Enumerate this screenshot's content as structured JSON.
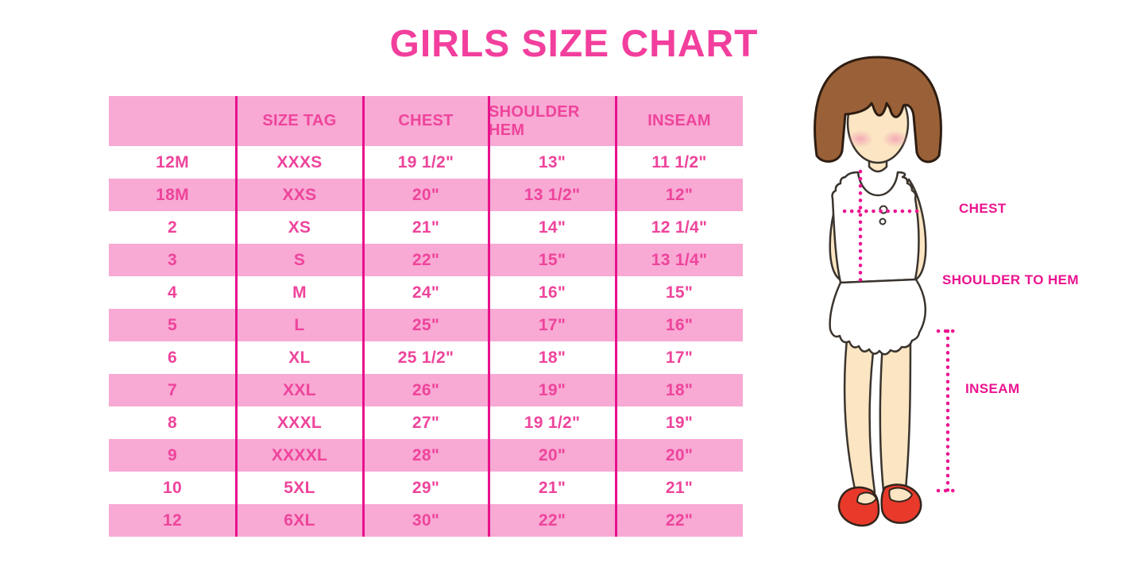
{
  "chart_data": {
    "type": "table",
    "title": "GIRLS SIZE CHART",
    "columns": [
      "",
      "SIZE TAG",
      "CHEST",
      "SHOULDER HEM",
      "INSEAM"
    ],
    "rows": [
      [
        "12M",
        "XXXS",
        "19 1/2\"",
        "13\"",
        "11 1/2\""
      ],
      [
        "18M",
        "XXS",
        "20\"",
        "13 1/2\"",
        "12\""
      ],
      [
        "2",
        "XS",
        "21\"",
        "14\"",
        "12 1/4\""
      ],
      [
        "3",
        "S",
        "22\"",
        "15\"",
        "13 1/4\""
      ],
      [
        "4",
        "M",
        "24\"",
        "16\"",
        "15\""
      ],
      [
        "5",
        "L",
        "25\"",
        "17\"",
        "16\""
      ],
      [
        "6",
        "XL",
        "25 1/2\"",
        "18\"",
        "17\""
      ],
      [
        "7",
        "XXL",
        "26\"",
        "19\"",
        "18\""
      ],
      [
        "8",
        "XXXL",
        "27\"",
        "19 1/2\"",
        "19\""
      ],
      [
        "9",
        "XXXXL",
        "28\"",
        "20\"",
        "20\""
      ],
      [
        "10",
        "5XL",
        "29\"",
        "21\"",
        "21\""
      ],
      [
        "12",
        "6XL",
        "30\"",
        "22\"",
        "22\""
      ]
    ],
    "layout": {
      "header_fill": "pink",
      "row_stripes": "white/pink alternating",
      "grid": "vertical magenta column lines only"
    }
  },
  "figure": {
    "description": "cartoon girl with brown bob hair, white sleeveless dress, red shoes, dotted measurement guides",
    "labels": {
      "chest": "CHEST",
      "shoulder_to_hem": "SHOULDER TO HEM",
      "inseam": "INSEAM"
    }
  },
  "colors": {
    "title_pink": "#F23F9D",
    "row_pink": "#F8A9D4",
    "cell_text": "#EE449B",
    "sep": "#E8108C",
    "label_magenta": "#EB1390",
    "hair_brown": "#9A6138",
    "skin": "#FBE5C2",
    "shoe_red": "#E8392B"
  }
}
